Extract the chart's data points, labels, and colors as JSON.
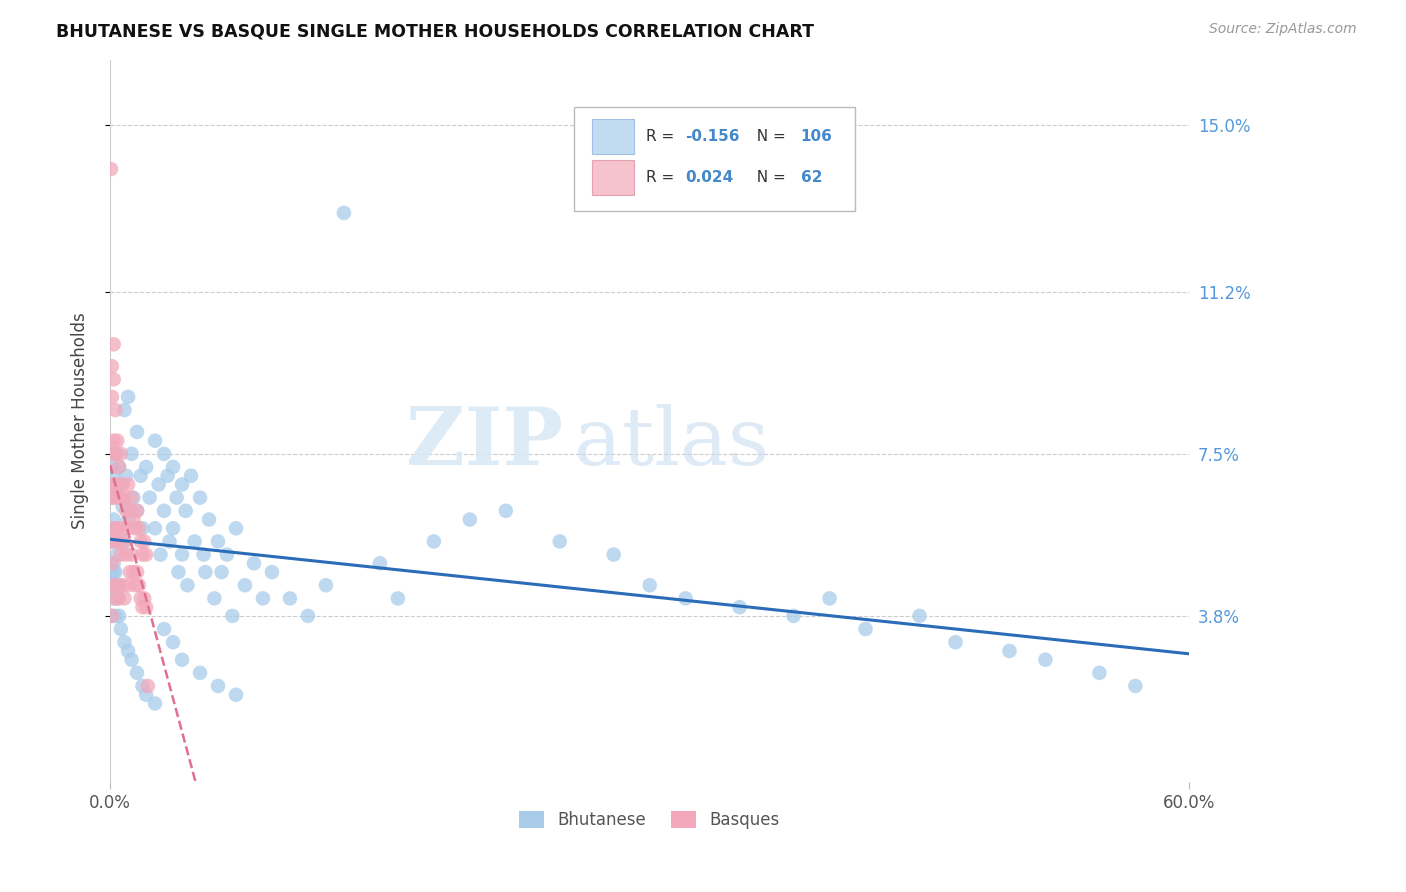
{
  "title": "BHUTANESE VS BASQUE SINGLE MOTHER HOUSEHOLDS CORRELATION CHART",
  "source": "Source: ZipAtlas.com",
  "ylabel": "Single Mother Households",
  "ytick_labels": [
    "3.8%",
    "7.5%",
    "11.2%",
    "15.0%"
  ],
  "ytick_values": [
    0.038,
    0.075,
    0.112,
    0.15
  ],
  "xlim": [
    0.0,
    0.6
  ],
  "ylim": [
    0.0,
    0.165
  ],
  "legend_blue_r": "-0.156",
  "legend_blue_n": "106",
  "legend_pink_r": "0.024",
  "legend_pink_n": "62",
  "blue_color": "#A8CCEA",
  "pink_color": "#F2A8BA",
  "trend_blue_color": "#2B6CB8",
  "trend_pink_color": "#E07090",
  "watermark_zip": "ZIP",
  "watermark_atlas": "atlas",
  "bhutanese_x": [
    0.001,
    0.001,
    0.001,
    0.001,
    0.001,
    0.002,
    0.002,
    0.002,
    0.002,
    0.003,
    0.003,
    0.003,
    0.003,
    0.004,
    0.004,
    0.005,
    0.005,
    0.006,
    0.007,
    0.008,
    0.008,
    0.009,
    0.01,
    0.01,
    0.012,
    0.013,
    0.015,
    0.015,
    0.017,
    0.018,
    0.02,
    0.022,
    0.025,
    0.025,
    0.027,
    0.028,
    0.03,
    0.03,
    0.032,
    0.033,
    0.035,
    0.035,
    0.037,
    0.038,
    0.04,
    0.04,
    0.042,
    0.043,
    0.045,
    0.047,
    0.05,
    0.052,
    0.053,
    0.055,
    0.058,
    0.06,
    0.062,
    0.065,
    0.068,
    0.07,
    0.075,
    0.08,
    0.085,
    0.09,
    0.1,
    0.11,
    0.12,
    0.13,
    0.15,
    0.16,
    0.18,
    0.2,
    0.22,
    0.25,
    0.28,
    0.3,
    0.32,
    0.35,
    0.38,
    0.4,
    0.42,
    0.45,
    0.47,
    0.5,
    0.52,
    0.55,
    0.57,
    0.001,
    0.002,
    0.003,
    0.004,
    0.005,
    0.006,
    0.008,
    0.01,
    0.012,
    0.015,
    0.018,
    0.02,
    0.025,
    0.03,
    0.035,
    0.04,
    0.05,
    0.06,
    0.07
  ],
  "bhutanese_y": [
    0.072,
    0.065,
    0.055,
    0.048,
    0.038,
    0.07,
    0.06,
    0.05,
    0.042,
    0.068,
    0.058,
    0.048,
    0.038,
    0.075,
    0.052,
    0.072,
    0.045,
    0.068,
    0.063,
    0.085,
    0.055,
    0.07,
    0.088,
    0.06,
    0.075,
    0.065,
    0.08,
    0.062,
    0.07,
    0.058,
    0.072,
    0.065,
    0.078,
    0.058,
    0.068,
    0.052,
    0.075,
    0.062,
    0.07,
    0.055,
    0.072,
    0.058,
    0.065,
    0.048,
    0.068,
    0.052,
    0.062,
    0.045,
    0.07,
    0.055,
    0.065,
    0.052,
    0.048,
    0.06,
    0.042,
    0.055,
    0.048,
    0.052,
    0.038,
    0.058,
    0.045,
    0.05,
    0.042,
    0.048,
    0.042,
    0.038,
    0.045,
    0.13,
    0.05,
    0.042,
    0.055,
    0.06,
    0.062,
    0.055,
    0.052,
    0.045,
    0.042,
    0.04,
    0.038,
    0.042,
    0.035,
    0.038,
    0.032,
    0.03,
    0.028,
    0.025,
    0.022,
    0.075,
    0.048,
    0.045,
    0.042,
    0.038,
    0.035,
    0.032,
    0.03,
    0.028,
    0.025,
    0.022,
    0.02,
    0.018,
    0.035,
    0.032,
    0.028,
    0.025,
    0.022,
    0.02
  ],
  "basque_x": [
    0.0005,
    0.0005,
    0.001,
    0.001,
    0.001,
    0.001,
    0.001,
    0.001,
    0.002,
    0.002,
    0.002,
    0.002,
    0.002,
    0.002,
    0.003,
    0.003,
    0.003,
    0.003,
    0.003,
    0.004,
    0.004,
    0.004,
    0.004,
    0.005,
    0.005,
    0.005,
    0.005,
    0.006,
    0.006,
    0.006,
    0.007,
    0.007,
    0.007,
    0.008,
    0.008,
    0.008,
    0.009,
    0.009,
    0.01,
    0.01,
    0.01,
    0.011,
    0.011,
    0.012,
    0.012,
    0.013,
    0.013,
    0.014,
    0.014,
    0.015,
    0.015,
    0.016,
    0.016,
    0.017,
    0.017,
    0.018,
    0.018,
    0.019,
    0.019,
    0.02,
    0.02,
    0.021
  ],
  "basque_y": [
    0.14,
    0.055,
    0.095,
    0.088,
    0.075,
    0.065,
    0.05,
    0.038,
    0.1,
    0.092,
    0.078,
    0.068,
    0.058,
    0.045,
    0.085,
    0.075,
    0.065,
    0.055,
    0.042,
    0.078,
    0.068,
    0.058,
    0.045,
    0.072,
    0.065,
    0.055,
    0.042,
    0.075,
    0.065,
    0.052,
    0.068,
    0.058,
    0.045,
    0.065,
    0.055,
    0.042,
    0.062,
    0.052,
    0.068,
    0.058,
    0.045,
    0.062,
    0.048,
    0.065,
    0.052,
    0.06,
    0.048,
    0.058,
    0.045,
    0.062,
    0.048,
    0.058,
    0.045,
    0.055,
    0.042,
    0.052,
    0.04,
    0.055,
    0.042,
    0.052,
    0.04,
    0.022
  ]
}
